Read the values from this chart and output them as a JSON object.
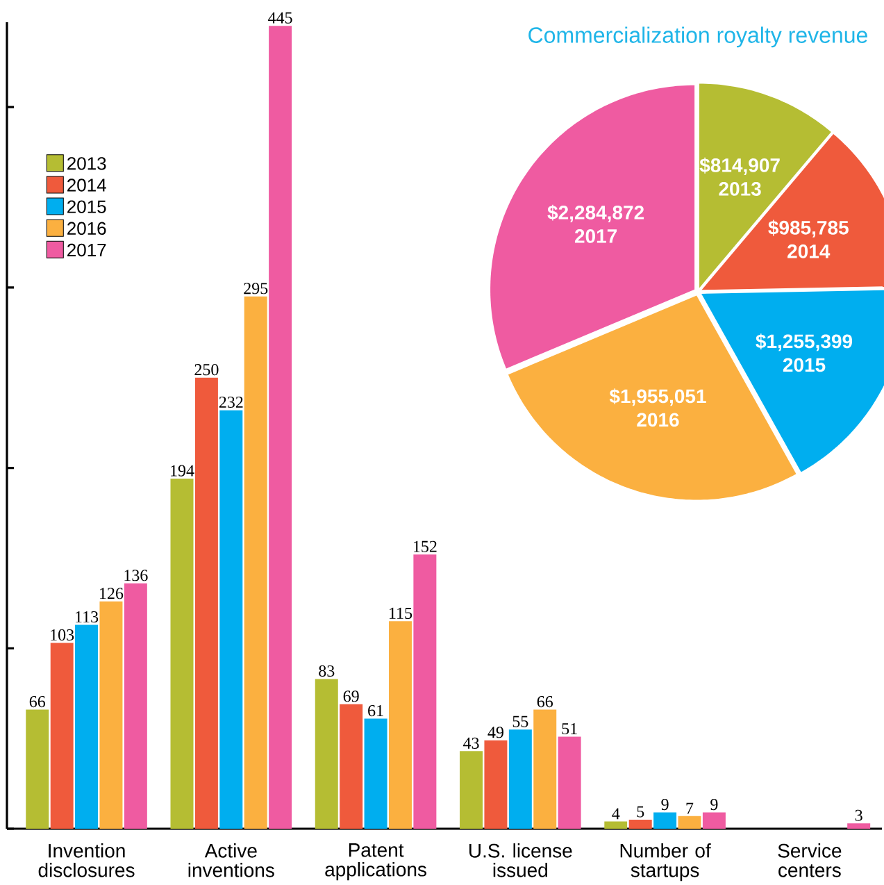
{
  "chart_data": [
    {
      "type": "bar",
      "categories": [
        "Invention disclosures",
        "Active inventions",
        "Patent applications",
        "U.S. license issued",
        "Number of startups",
        "Service centers"
      ],
      "series": [
        {
          "name": "2013",
          "color": "#b5bd33",
          "values": [
            66,
            194,
            83,
            43,
            4,
            null
          ]
        },
        {
          "name": "2014",
          "color": "#ef5a3c",
          "values": [
            103,
            250,
            69,
            49,
            5,
            null
          ]
        },
        {
          "name": "2015",
          "color": "#00aeef",
          "values": [
            113,
            232,
            61,
            55,
            9,
            null
          ]
        },
        {
          "name": "2016",
          "color": "#fbb040",
          "values": [
            126,
            295,
            115,
            66,
            7,
            null
          ]
        },
        {
          "name": "2017",
          "color": "#ef5ba1",
          "values": [
            136,
            445,
            152,
            51,
            9,
            3
          ]
        }
      ],
      "ylim": [
        0,
        447
      ],
      "yticks": [
        {
          "value": 0,
          "label": null
        },
        {
          "value": 100,
          "label": null
        },
        {
          "value": 200,
          "label": null
        },
        {
          "value": 300,
          "label": null
        },
        {
          "value": 400,
          "label": null
        }
      ],
      "tick_labels": "x",
      "data_labels": true,
      "legend": "top left"
    },
    {
      "type": "pie",
      "title": "Commercialization royalty revenue",
      "categories": [
        "2013",
        "2014",
        "2015",
        "2016",
        "2017"
      ],
      "values": [
        814907,
        985785,
        1255399,
        1955051,
        2284872
      ],
      "colors": [
        "#b5bd33",
        "#ef5a3c",
        "#00aeef",
        "#fbb040",
        "#ef5ba1"
      ],
      "value_labels": [
        "$814,907",
        "$985,785",
        "$1,255,399",
        "$1,955,051",
        "$2,284,872"
      ]
    }
  ]
}
